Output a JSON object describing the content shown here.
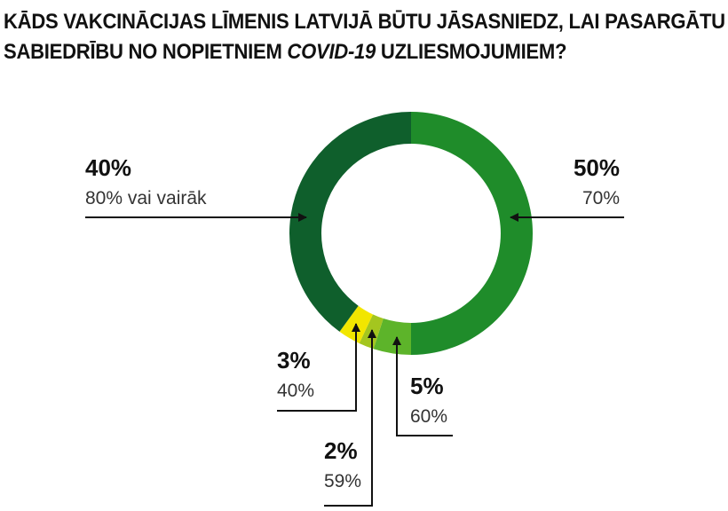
{
  "title": {
    "line1": "KĀDS VAKCINĀCIJAS LĪMENIS LATVIJĀ BŪTU JĀSASNIEDZ, LAI PASARGĀTU",
    "line2_before": "SABIEDRĪBU NO NOPIETNIEM ",
    "line2_italic": "COVID-19",
    "line2_after": " UZLIESMOJUMIEM?"
  },
  "chart_data": {
    "type": "pie",
    "variant": "donut",
    "title": "KĀDS VAKCINĀCIJAS LĪMENIS LATVIJĀ BŪTU JĀSASNIEDZ, LAI PASARGĀTU SABIEDRĪBU NO NOPIETNIEM COVID-19 UZLIESMOJUMIEM?",
    "slices": [
      {
        "label": "70%",
        "value": 50,
        "value_label": "50%",
        "color": "#1f8c2a"
      },
      {
        "label": "60%",
        "value": 5,
        "value_label": "5%",
        "color": "#5db42a"
      },
      {
        "label": "59%",
        "value": 2,
        "value_label": "2%",
        "color": "#a4c61f"
      },
      {
        "label": "40%",
        "value": 3,
        "value_label": "3%",
        "color": "#f2e600"
      },
      {
        "label": "80% vai vairāk",
        "value": 40,
        "value_label": "40%",
        "color": "#0f5f2c"
      }
    ]
  }
}
